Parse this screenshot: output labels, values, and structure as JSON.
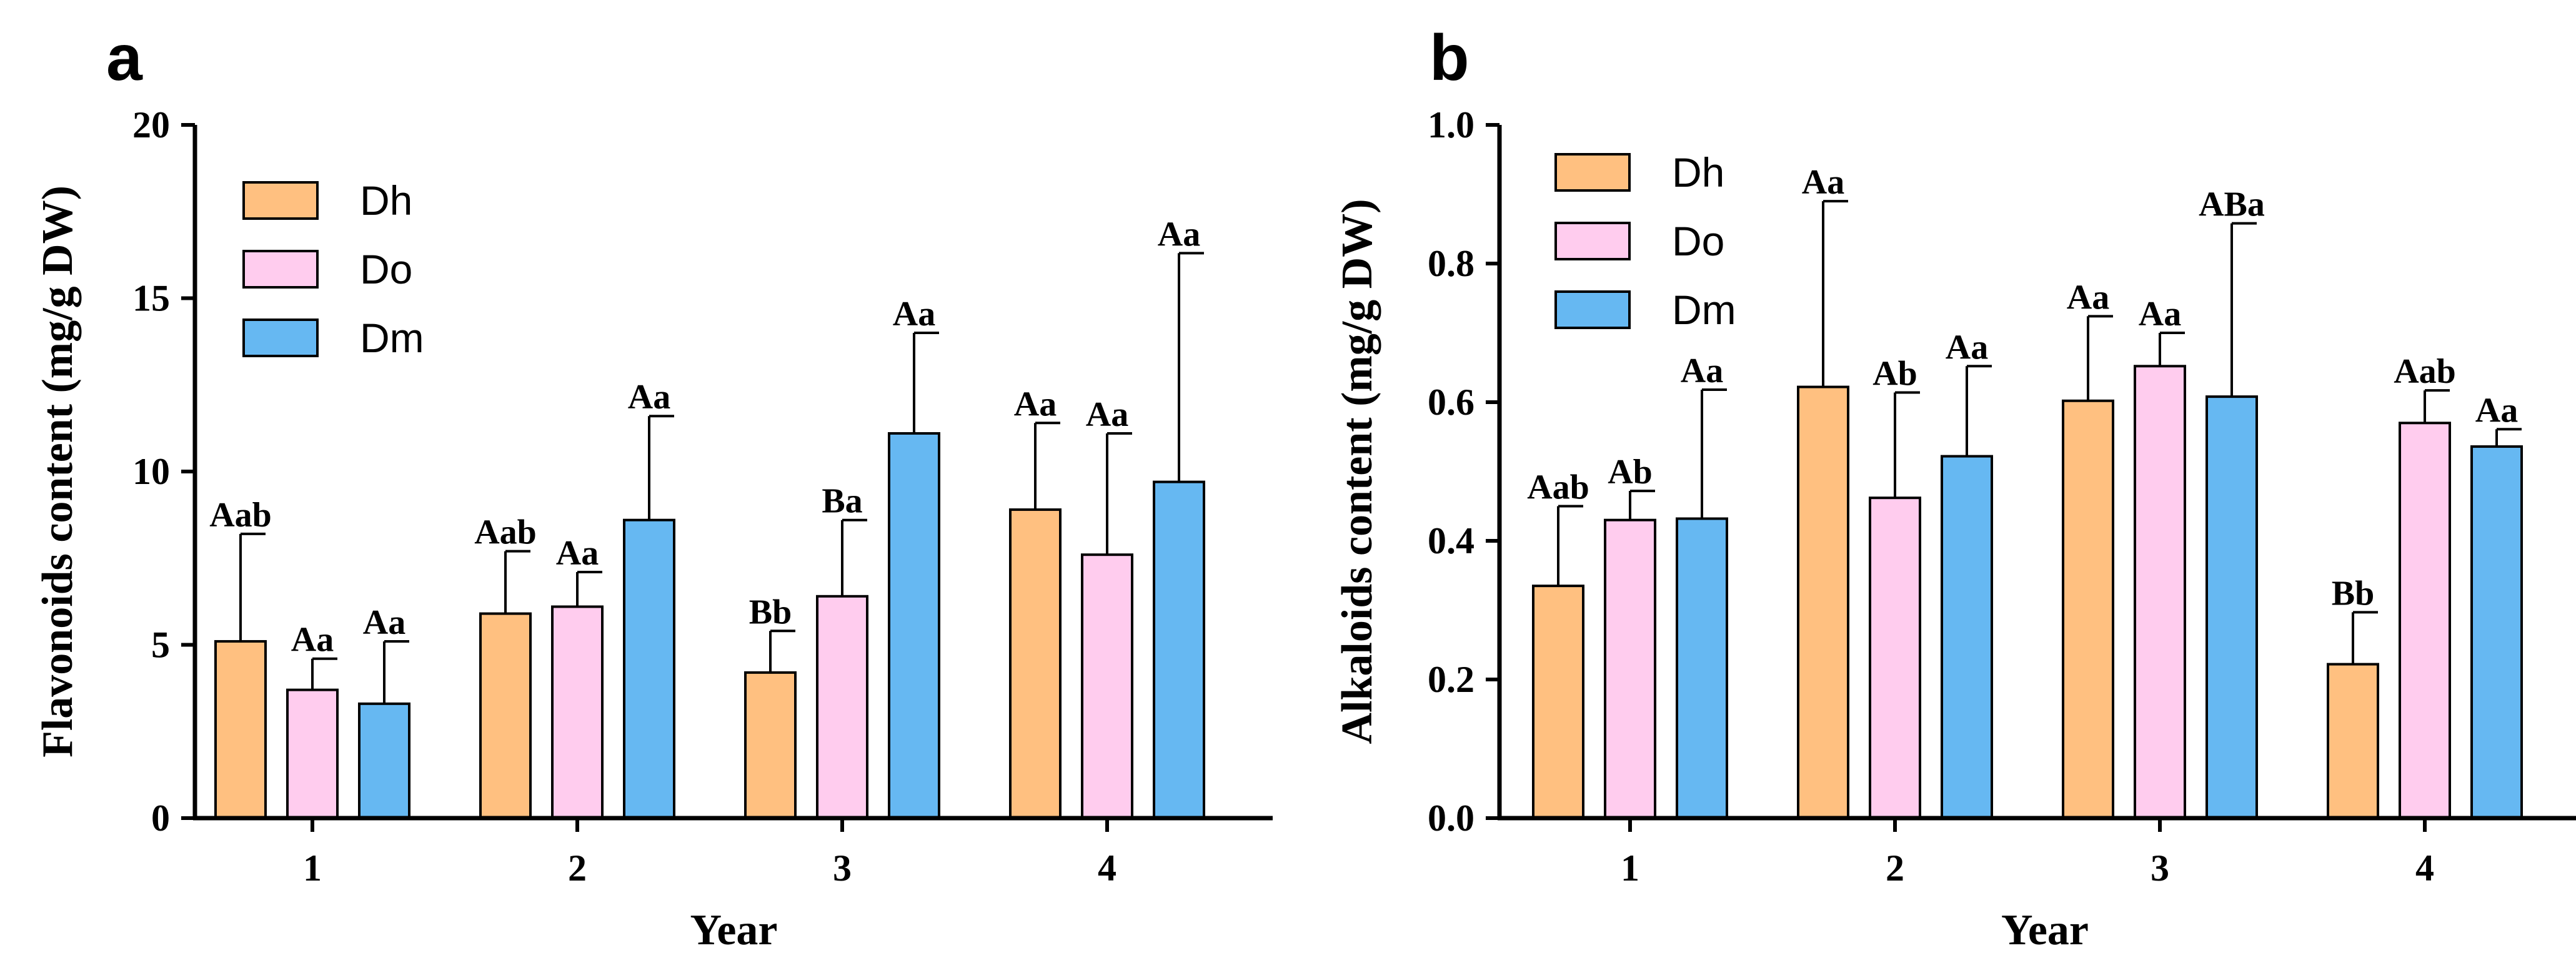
{
  "figure": {
    "panels": [
      "a",
      "b"
    ]
  },
  "chart_data": [
    {
      "type": "bar",
      "panel": "a",
      "title": "",
      "xlabel": "Year",
      "ylabel": "Flavonoids content (mg/g DW)",
      "categories": [
        "1",
        "2",
        "3",
        "4"
      ],
      "ylim": [
        0,
        20
      ],
      "yticks": [
        0,
        5,
        10,
        15,
        20
      ],
      "ytick_labels": [
        "0",
        "5",
        "10",
        "15",
        "20"
      ],
      "legend_position": "top-left",
      "series": [
        {
          "name": "Dh",
          "color": "#FFC080",
          "values": [
            5.1,
            5.9,
            4.2,
            8.9
          ],
          "errors": [
            3.1,
            1.8,
            1.2,
            2.5
          ],
          "labels": [
            "Aab",
            "Aab",
            "Bb",
            "Aa"
          ]
        },
        {
          "name": "Do",
          "color": "#FFCCEE",
          "values": [
            3.7,
            6.1,
            6.4,
            7.6
          ],
          "errors": [
            0.9,
            1.0,
            2.2,
            3.5
          ],
          "labels": [
            "Aa",
            "Aa",
            "Ba",
            "Aa"
          ]
        },
        {
          "name": "Dm",
          "color": "#66B8F2",
          "values": [
            3.3,
            8.6,
            11.1,
            9.7
          ],
          "errors": [
            1.8,
            3.0,
            2.9,
            6.6
          ],
          "labels": [
            "Aa",
            "Aa",
            "Aa",
            "Aa"
          ]
        }
      ]
    },
    {
      "type": "bar",
      "panel": "b",
      "title": "",
      "xlabel": "Year",
      "ylabel": "Alkaloids content (mg/g DW)",
      "categories": [
        "1",
        "2",
        "3",
        "4"
      ],
      "ylim": [
        0,
        1.0
      ],
      "yticks": [
        0,
        0.2,
        0.4,
        0.6,
        0.8,
        1.0
      ],
      "ytick_labels": [
        "0.0",
        "0.2",
        "0.4",
        "0.6",
        "0.8",
        "1.0"
      ],
      "legend_position": "top-left",
      "series": [
        {
          "name": "Dh",
          "color": "#FFC080",
          "values": [
            0.335,
            0.622,
            0.602,
            0.222
          ],
          "errors": [
            0.115,
            0.268,
            0.122,
            0.075
          ],
          "labels": [
            "Aab",
            "Aa",
            "Aa",
            "Bb"
          ]
        },
        {
          "name": "Do",
          "color": "#FFCCEE",
          "values": [
            0.43,
            0.462,
            0.652,
            0.57
          ],
          "errors": [
            0.042,
            0.152,
            0.048,
            0.047
          ],
          "labels": [
            "Ab",
            "Ab",
            "Aa",
            "Aab"
          ]
        },
        {
          "name": "Dm",
          "color": "#66B8F2",
          "values": [
            0.432,
            0.522,
            0.608,
            0.536
          ],
          "errors": [
            0.186,
            0.13,
            0.25,
            0.025
          ],
          "labels": [
            "Aa",
            "Aa",
            "ABa",
            "Aa"
          ]
        }
      ]
    }
  ]
}
